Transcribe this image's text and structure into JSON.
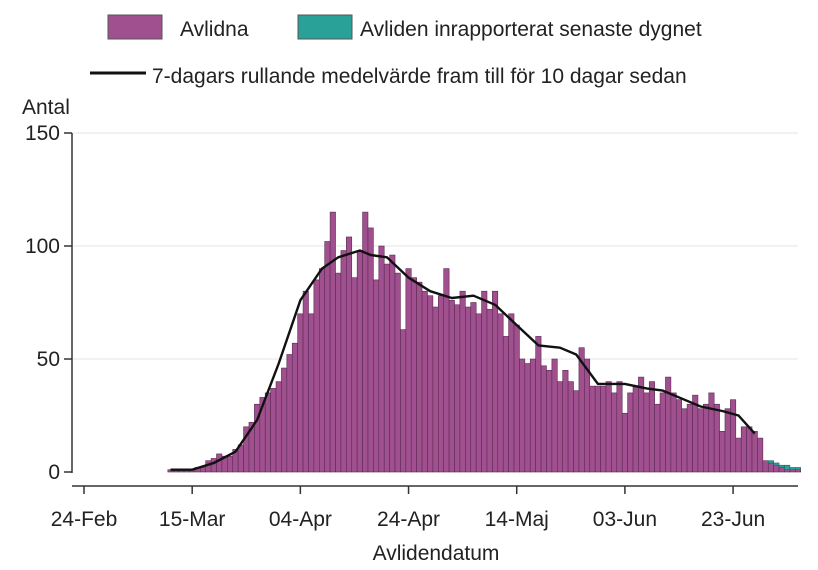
{
  "chart_data": {
    "type": "bar",
    "ylabel": "Antal",
    "xlabel": "Avlidendatum",
    "ylim": [
      0,
      150
    ],
    "y_ticks": [
      0,
      50,
      100,
      150
    ],
    "x_start_date": "2020-02-24",
    "x_ticks": [
      {
        "date": "2020-02-24",
        "label": "24-Feb"
      },
      {
        "date": "2020-03-15",
        "label": "15-Mar"
      },
      {
        "date": "2020-04-04",
        "label": "04-Apr"
      },
      {
        "date": "2020-04-24",
        "label": "24-Apr"
      },
      {
        "date": "2020-05-14",
        "label": "14-Maj"
      },
      {
        "date": "2020-06-03",
        "label": "03-Jun"
      },
      {
        "date": "2020-06-23",
        "label": "23-Jun"
      }
    ],
    "xlim": [
      "2020-02-24",
      "2020-07-05"
    ],
    "grid": true,
    "legend": [
      {
        "key": "avlidna",
        "label": "Avlidna",
        "color": "#a0508e"
      },
      {
        "key": "new",
        "label": "Avliden inrapporterat senaste dygnet",
        "color": "#2aa198"
      },
      {
        "key": "avg",
        "label": "7-dagars rullande medelvärde fram till för 10 dagar sedan",
        "color": "#111111"
      }
    ],
    "series": [
      {
        "name": "Avlidna",
        "color": "#a0508e",
        "start_date": "2020-03-11",
        "values": [
          1,
          1,
          1,
          1,
          1,
          2,
          2,
          5,
          6,
          8,
          7,
          7,
          10,
          12,
          20,
          22,
          30,
          33,
          35,
          37,
          40,
          46,
          52,
          57,
          70,
          80,
          70,
          85,
          90,
          102,
          115,
          88,
          98,
          104,
          86,
          98,
          115,
          108,
          85,
          100,
          92,
          96,
          88,
          63,
          90,
          86,
          84,
          80,
          78,
          73,
          78,
          90,
          76,
          74,
          80,
          73,
          75,
          70,
          80,
          72,
          80,
          70,
          60,
          70,
          65,
          50,
          48,
          50,
          60,
          47,
          45,
          50,
          40,
          45,
          40,
          36,
          55,
          50,
          38,
          38,
          38,
          40,
          35,
          40,
          26,
          35,
          38,
          42,
          35,
          40,
          30,
          35,
          42,
          35,
          32,
          28,
          30,
          34,
          28,
          30,
          35,
          30,
          18,
          28,
          32,
          15,
          20,
          20,
          18,
          15,
          5,
          4,
          3,
          2,
          1,
          1,
          1
        ],
        "new_values": [
          0,
          0,
          0,
          0,
          0,
          0,
          0,
          0,
          0,
          0,
          0,
          0,
          0,
          0,
          0,
          0,
          0,
          0,
          0,
          0,
          0,
          0,
          0,
          0,
          0,
          0,
          0,
          0,
          0,
          0,
          0,
          0,
          0,
          0,
          0,
          0,
          0,
          0,
          0,
          0,
          0,
          0,
          0,
          0,
          0,
          0,
          0,
          0,
          0,
          0,
          0,
          0,
          0,
          0,
          0,
          0,
          0,
          0,
          0,
          0,
          0,
          0,
          0,
          0,
          0,
          0,
          0,
          0,
          0,
          0,
          0,
          0,
          0,
          0,
          0,
          0,
          0,
          0,
          0,
          0,
          0,
          0,
          0,
          0,
          0,
          0,
          0,
          0,
          0,
          0,
          0,
          0,
          0,
          0,
          0,
          0,
          0,
          0,
          0,
          0,
          0,
          0,
          0,
          0,
          0,
          0,
          0,
          0,
          0,
          0,
          0,
          1,
          1,
          1,
          2,
          1,
          1
        ]
      },
      {
        "name": "7-dagars rullande medelvärde fram till för 10 dagar sedan",
        "type": "line",
        "color": "#111111",
        "points": [
          {
            "date": "2020-03-11",
            "value": 1
          },
          {
            "date": "2020-03-15",
            "value": 1
          },
          {
            "date": "2020-03-19",
            "value": 4
          },
          {
            "date": "2020-03-23",
            "value": 9
          },
          {
            "date": "2020-03-27",
            "value": 23
          },
          {
            "date": "2020-03-31",
            "value": 48
          },
          {
            "date": "2020-04-04",
            "value": 76
          },
          {
            "date": "2020-04-08",
            "value": 90
          },
          {
            "date": "2020-04-11",
            "value": 95
          },
          {
            "date": "2020-04-15",
            "value": 98
          },
          {
            "date": "2020-04-17",
            "value": 96
          },
          {
            "date": "2020-04-20",
            "value": 95
          },
          {
            "date": "2020-04-24",
            "value": 86
          },
          {
            "date": "2020-04-28",
            "value": 80
          },
          {
            "date": "2020-05-02",
            "value": 77
          },
          {
            "date": "2020-05-06",
            "value": 78
          },
          {
            "date": "2020-05-10",
            "value": 74
          },
          {
            "date": "2020-05-14",
            "value": 65
          },
          {
            "date": "2020-05-18",
            "value": 56
          },
          {
            "date": "2020-05-22",
            "value": 55
          },
          {
            "date": "2020-05-25",
            "value": 52
          },
          {
            "date": "2020-05-29",
            "value": 39
          },
          {
            "date": "2020-06-03",
            "value": 39
          },
          {
            "date": "2020-06-07",
            "value": 37
          },
          {
            "date": "2020-06-10",
            "value": 36
          },
          {
            "date": "2020-06-14",
            "value": 32
          },
          {
            "date": "2020-06-17",
            "value": 29
          },
          {
            "date": "2020-06-21",
            "value": 27
          },
          {
            "date": "2020-06-24",
            "value": 25
          },
          {
            "date": "2020-06-27",
            "value": 17
          }
        ]
      }
    ]
  }
}
